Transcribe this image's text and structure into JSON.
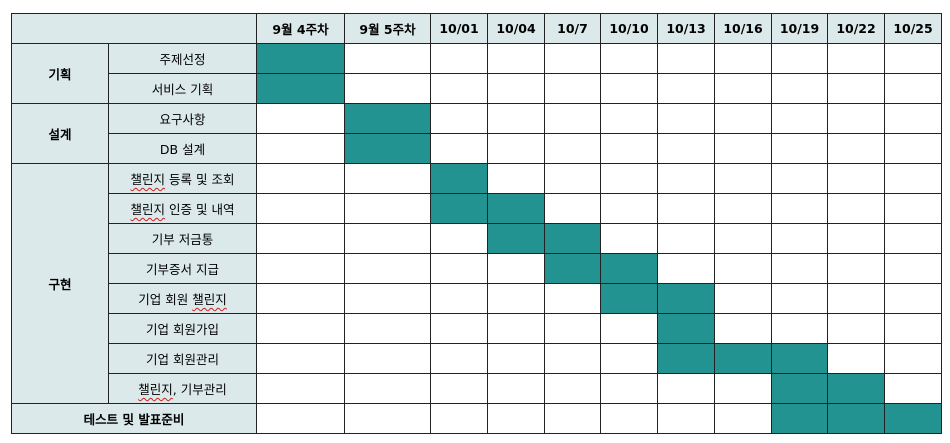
{
  "columns": [
    "9월 4주차",
    "9월 5주차",
    "10/01",
    "10/04",
    "10/7",
    "10/10",
    "10/13",
    "10/16",
    "10/19",
    "10/22",
    "10/25"
  ],
  "colors": {
    "header_bg": "#dce9ea",
    "bar": "#239392",
    "border": "#222222"
  },
  "rows": [
    {
      "phase": "기획",
      "phase_rows": 2,
      "task_parts": [
        {
          "t": "주제선정"
        }
      ],
      "active": [
        0
      ]
    },
    {
      "task_parts": [
        {
          "t": "서비스 기획"
        }
      ],
      "active": [
        0
      ]
    },
    {
      "phase": "설계",
      "phase_rows": 2,
      "task_parts": [
        {
          "t": "요구사항"
        }
      ],
      "active": [
        1
      ]
    },
    {
      "task_parts": [
        {
          "t": "DB 설계"
        }
      ],
      "active": [
        1
      ]
    },
    {
      "phase": "구현",
      "phase_rows": 8,
      "task_parts": [
        {
          "t": "챌린지",
          "spell": true
        },
        {
          "t": " 등록 및 조회"
        }
      ],
      "active": [
        2
      ]
    },
    {
      "task_parts": [
        {
          "t": "챌린지",
          "spell": true
        },
        {
          "t": " 인증 및 내역"
        }
      ],
      "active": [
        2,
        3
      ]
    },
    {
      "task_parts": [
        {
          "t": "기부 저금통"
        }
      ],
      "active": [
        3,
        4
      ]
    },
    {
      "task_parts": [
        {
          "t": "기부증서 지급"
        }
      ],
      "active": [
        4,
        5
      ]
    },
    {
      "task_parts": [
        {
          "t": "기업 회원 "
        },
        {
          "t": "챌린지",
          "spell": true
        }
      ],
      "active": [
        5,
        6
      ]
    },
    {
      "task_parts": [
        {
          "t": "기업 회원가입"
        }
      ],
      "active": [
        6
      ]
    },
    {
      "task_parts": [
        {
          "t": "기업 회원관리"
        }
      ],
      "active": [
        6,
        7,
        8
      ]
    },
    {
      "task_parts": [
        {
          "t": "챌린지",
          "spell": true
        },
        {
          "t": ", 기부관리"
        }
      ],
      "active": [
        8,
        9
      ]
    },
    {
      "span_label": "테스트 및 발표준비",
      "active": [
        8,
        9,
        10
      ]
    }
  ]
}
